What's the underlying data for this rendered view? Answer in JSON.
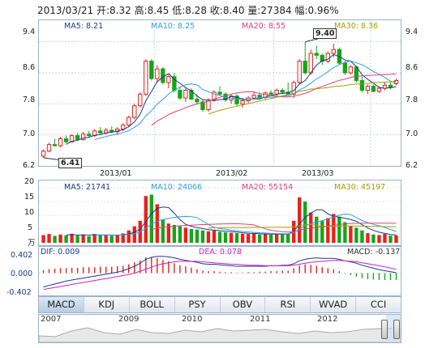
{
  "header": {
    "date": "2013/03/21",
    "open_label": "开:",
    "open": "8.32",
    "high_label": "高:",
    "high": "8.45",
    "low_label": "低:",
    "low": "8.28",
    "close_label": "收:",
    "close": "8.40",
    "volume_label": "量:",
    "volume": "27384",
    "change_label": "幅:",
    "change": "0.96%"
  },
  "price_panel": {
    "legend": [
      {
        "label": "MA5: 8.21",
        "color": "#1a3a8a"
      },
      {
        "label": "MA10: 8.25",
        "color": "#2aa0e0"
      },
      {
        "label": "MA20: 8.55",
        "color": "#e0407a"
      },
      {
        "label": "MA30: 8.36",
        "color": "#a0a000"
      }
    ],
    "y_ticks": [
      "9.4",
      "8.6",
      "7.8",
      "7.0",
      "6.2"
    ],
    "x_labels": [
      "2013/01",
      "2013/02",
      "2013/03"
    ],
    "max_callout": "9.40",
    "min_callout": "6.41"
  },
  "volume_panel": {
    "legend": [
      {
        "label": "MA5: 21741",
        "color": "#1a3a8a"
      },
      {
        "label": "MA10: 24066",
        "color": "#2aa0e0"
      },
      {
        "label": "MA20: 55154",
        "color": "#e0407a"
      },
      {
        "label": "MA30: 45197",
        "color": "#a0a000"
      }
    ],
    "y_ticks": [
      "20",
      "15",
      "10",
      "5"
    ],
    "unit": "万"
  },
  "macd_panel": {
    "legend": [
      {
        "label": "DIF: 0.009",
        "color": "#1a3a8a"
      },
      {
        "label": "DEA: 0.078",
        "color": "#d020c0"
      },
      {
        "label": "MACD: -0.137",
        "color": "#333333"
      }
    ],
    "y_ticks": [
      "0.402",
      "0.000",
      "-0.402"
    ]
  },
  "tabs": [
    "MACD",
    "KDJ",
    "BOLL",
    "PSY",
    "OBV",
    "RSI",
    "WVAD",
    "CCI"
  ],
  "active_tab": "MACD",
  "navigator": {
    "years": [
      "2007",
      "2009",
      "2010",
      "2011",
      "2012"
    ]
  },
  "chart_data": {
    "type": "candlestick",
    "price_ylim": [
      6.2,
      9.6
    ],
    "volume_ylim": [
      0,
      20
    ],
    "macd_ylim": [
      -0.402,
      0.402
    ],
    "candles": [
      {
        "o": 6.45,
        "h": 6.62,
        "l": 6.41,
        "c": 6.58,
        "v": 2.8
      },
      {
        "o": 6.58,
        "h": 6.8,
        "l": 6.55,
        "c": 6.75,
        "v": 3.2
      },
      {
        "o": 6.75,
        "h": 6.9,
        "l": 6.7,
        "c": 6.72,
        "v": 2.5
      },
      {
        "o": 6.72,
        "h": 6.95,
        "l": 6.68,
        "c": 6.9,
        "v": 3.0
      },
      {
        "o": 6.9,
        "h": 6.98,
        "l": 6.78,
        "c": 6.82,
        "v": 2.7
      },
      {
        "o": 6.82,
        "h": 7.02,
        "l": 6.8,
        "c": 6.98,
        "v": 3.3
      },
      {
        "o": 6.98,
        "h": 7.05,
        "l": 6.85,
        "c": 6.88,
        "v": 2.6
      },
      {
        "o": 6.88,
        "h": 7.08,
        "l": 6.85,
        "c": 7.02,
        "v": 3.0
      },
      {
        "o": 7.02,
        "h": 7.1,
        "l": 6.95,
        "c": 6.98,
        "v": 2.4
      },
      {
        "o": 6.98,
        "h": 7.15,
        "l": 6.95,
        "c": 7.1,
        "v": 3.2
      },
      {
        "o": 7.1,
        "h": 7.2,
        "l": 7.02,
        "c": 7.05,
        "v": 2.7
      },
      {
        "o": 7.05,
        "h": 7.18,
        "l": 7.0,
        "c": 7.12,
        "v": 2.9
      },
      {
        "o": 7.12,
        "h": 7.22,
        "l": 7.05,
        "c": 7.08,
        "v": 2.5
      },
      {
        "o": 7.08,
        "h": 7.2,
        "l": 7.0,
        "c": 7.15,
        "v": 2.8
      },
      {
        "o": 7.15,
        "h": 7.3,
        "l": 7.1,
        "c": 7.25,
        "v": 3.4
      },
      {
        "o": 7.25,
        "h": 7.5,
        "l": 7.2,
        "c": 7.45,
        "v": 4.5
      },
      {
        "o": 7.45,
        "h": 7.8,
        "l": 7.4,
        "c": 7.75,
        "v": 6.0
      },
      {
        "o": 7.75,
        "h": 8.1,
        "l": 7.7,
        "c": 8.05,
        "v": 8.0
      },
      {
        "o": 8.05,
        "h": 8.95,
        "l": 8.0,
        "c": 8.9,
        "v": 17.0
      },
      {
        "o": 8.9,
        "h": 8.95,
        "l": 8.4,
        "c": 8.45,
        "v": 17.5
      },
      {
        "o": 8.45,
        "h": 8.8,
        "l": 8.35,
        "c": 8.7,
        "v": 14.0
      },
      {
        "o": 8.7,
        "h": 8.75,
        "l": 8.3,
        "c": 8.35,
        "v": 8.5
      },
      {
        "o": 8.35,
        "h": 8.55,
        "l": 8.2,
        "c": 8.5,
        "v": 7.0
      },
      {
        "o": 8.5,
        "h": 8.6,
        "l": 8.1,
        "c": 8.15,
        "v": 6.5
      },
      {
        "o": 8.15,
        "h": 8.25,
        "l": 7.9,
        "c": 7.95,
        "v": 6.0
      },
      {
        "o": 7.95,
        "h": 8.2,
        "l": 7.85,
        "c": 8.15,
        "v": 5.5
      },
      {
        "o": 8.15,
        "h": 8.2,
        "l": 7.9,
        "c": 7.92,
        "v": 5.0
      },
      {
        "o": 7.92,
        "h": 8.05,
        "l": 7.8,
        "c": 7.85,
        "v": 4.8
      },
      {
        "o": 7.85,
        "h": 7.9,
        "l": 7.6,
        "c": 7.65,
        "v": 4.5
      },
      {
        "o": 7.65,
        "h": 7.95,
        "l": 7.6,
        "c": 7.9,
        "v": 4.2
      },
      {
        "o": 7.9,
        "h": 8.15,
        "l": 7.85,
        "c": 8.1,
        "v": 4.5
      },
      {
        "o": 8.1,
        "h": 8.25,
        "l": 8.0,
        "c": 8.05,
        "v": 4.0
      },
      {
        "o": 8.05,
        "h": 8.1,
        "l": 7.85,
        "c": 7.9,
        "v": 3.8
      },
      {
        "o": 7.9,
        "h": 8.05,
        "l": 7.8,
        "c": 8.0,
        "v": 3.6
      },
      {
        "o": 8.0,
        "h": 8.05,
        "l": 7.75,
        "c": 7.8,
        "v": 3.5
      },
      {
        "o": 7.8,
        "h": 7.95,
        "l": 7.7,
        "c": 7.88,
        "v": 3.3
      },
      {
        "o": 7.88,
        "h": 8.0,
        "l": 7.82,
        "c": 7.95,
        "v": 3.2
      },
      {
        "o": 7.95,
        "h": 8.1,
        "l": 7.9,
        "c": 8.02,
        "v": 3.4
      },
      {
        "o": 8.02,
        "h": 8.1,
        "l": 7.92,
        "c": 7.96,
        "v": 3.0
      },
      {
        "o": 7.96,
        "h": 8.12,
        "l": 7.92,
        "c": 8.08,
        "v": 3.2
      },
      {
        "o": 8.08,
        "h": 8.15,
        "l": 8.0,
        "c": 8.05,
        "v": 3.0
      },
      {
        "o": 8.05,
        "h": 8.2,
        "l": 8.0,
        "c": 8.15,
        "v": 3.3
      },
      {
        "o": 8.15,
        "h": 8.2,
        "l": 8.05,
        "c": 8.1,
        "v": 3.0
      },
      {
        "o": 8.1,
        "h": 8.35,
        "l": 8.05,
        "c": 8.05,
        "v": 3.4
      },
      {
        "o": 8.05,
        "h": 8.4,
        "l": 7.95,
        "c": 8.35,
        "v": 8.0
      },
      {
        "o": 8.35,
        "h": 8.95,
        "l": 8.3,
        "c": 8.9,
        "v": 16.5
      },
      {
        "o": 8.9,
        "h": 9.4,
        "l": 8.55,
        "c": 8.6,
        "v": 15.0
      },
      {
        "o": 8.6,
        "h": 9.2,
        "l": 8.55,
        "c": 9.1,
        "v": 11.0
      },
      {
        "o": 9.1,
        "h": 9.3,
        "l": 8.95,
        "c": 9.05,
        "v": 9.5
      },
      {
        "o": 9.05,
        "h": 9.1,
        "l": 8.8,
        "c": 8.9,
        "v": 8.0
      },
      {
        "o": 8.9,
        "h": 9.15,
        "l": 8.85,
        "c": 9.1,
        "v": 9.0
      },
      {
        "o": 9.1,
        "h": 9.35,
        "l": 9.0,
        "c": 9.2,
        "v": 10.5
      },
      {
        "o": 9.2,
        "h": 9.25,
        "l": 8.8,
        "c": 8.85,
        "v": 9.5
      },
      {
        "o": 8.85,
        "h": 8.9,
        "l": 8.55,
        "c": 8.6,
        "v": 7.5
      },
      {
        "o": 8.6,
        "h": 8.8,
        "l": 8.55,
        "c": 8.75,
        "v": 6.0
      },
      {
        "o": 8.75,
        "h": 8.78,
        "l": 8.35,
        "c": 8.4,
        "v": 5.5
      },
      {
        "o": 8.4,
        "h": 8.5,
        "l": 8.1,
        "c": 8.15,
        "v": 4.5
      },
      {
        "o": 8.15,
        "h": 8.3,
        "l": 8.05,
        "c": 8.25,
        "v": 3.5
      },
      {
        "o": 8.25,
        "h": 8.3,
        "l": 8.1,
        "c": 8.12,
        "v": 3.0
      },
      {
        "o": 8.12,
        "h": 8.25,
        "l": 8.08,
        "c": 8.2,
        "v": 2.8
      },
      {
        "o": 8.2,
        "h": 8.35,
        "l": 8.15,
        "c": 8.28,
        "v": 3.2
      },
      {
        "o": 8.28,
        "h": 8.35,
        "l": 8.18,
        "c": 8.22,
        "v": 2.6
      },
      {
        "o": 8.32,
        "h": 8.45,
        "l": 8.28,
        "c": 8.4,
        "v": 2.7
      }
    ],
    "macd_hist": [
      0.06,
      0.08,
      0.09,
      0.1,
      0.1,
      0.11,
      0.11,
      0.12,
      0.12,
      0.12,
      0.13,
      0.13,
      0.13,
      0.14,
      0.15,
      0.18,
      0.22,
      0.26,
      0.32,
      0.33,
      0.31,
      0.27,
      0.24,
      0.2,
      0.16,
      0.14,
      0.11,
      0.08,
      0.05,
      0.04,
      0.04,
      0.03,
      0.02,
      0.02,
      0.01,
      0.01,
      0.02,
      0.02,
      0.03,
      0.03,
      0.04,
      0.04,
      0.05,
      0.05,
      0.1,
      0.16,
      0.18,
      0.17,
      0.15,
      0.12,
      0.1,
      0.08,
      0.04,
      -0.01,
      -0.04,
      -0.07,
      -0.1,
      -0.12,
      -0.13,
      -0.14,
      -0.14,
      -0.14,
      -0.14
    ],
    "dif": [
      -0.28,
      -0.25,
      -0.22,
      -0.19,
      -0.16,
      -0.14,
      -0.12,
      -0.1,
      -0.08,
      -0.06,
      -0.04,
      -0.02,
      0.0,
      0.02,
      0.05,
      0.09,
      0.14,
      0.2,
      0.28,
      0.32,
      0.34,
      0.34,
      0.33,
      0.31,
      0.28,
      0.26,
      0.24,
      0.22,
      0.19,
      0.18,
      0.18,
      0.17,
      0.16,
      0.15,
      0.14,
      0.14,
      0.14,
      0.14,
      0.14,
      0.14,
      0.15,
      0.15,
      0.16,
      0.16,
      0.19,
      0.25,
      0.28,
      0.3,
      0.31,
      0.3,
      0.3,
      0.3,
      0.28,
      0.25,
      0.23,
      0.2,
      0.16,
      0.13,
      0.1,
      0.07,
      0.05,
      0.03,
      0.01
    ],
    "dea": [
      -0.33,
      -0.31,
      -0.29,
      -0.27,
      -0.25,
      -0.23,
      -0.21,
      -0.19,
      -0.17,
      -0.15,
      -0.13,
      -0.11,
      -0.09,
      -0.07,
      -0.05,
      -0.03,
      0.0,
      0.04,
      0.08,
      0.12,
      0.16,
      0.19,
      0.21,
      0.23,
      0.24,
      0.24,
      0.24,
      0.24,
      0.23,
      0.22,
      0.21,
      0.2,
      0.19,
      0.18,
      0.18,
      0.17,
      0.16,
      0.16,
      0.16,
      0.15,
      0.15,
      0.15,
      0.15,
      0.15,
      0.16,
      0.18,
      0.2,
      0.22,
      0.23,
      0.24,
      0.25,
      0.26,
      0.26,
      0.25,
      0.24,
      0.23,
      0.21,
      0.19,
      0.17,
      0.15,
      0.13,
      0.1,
      0.08
    ]
  }
}
